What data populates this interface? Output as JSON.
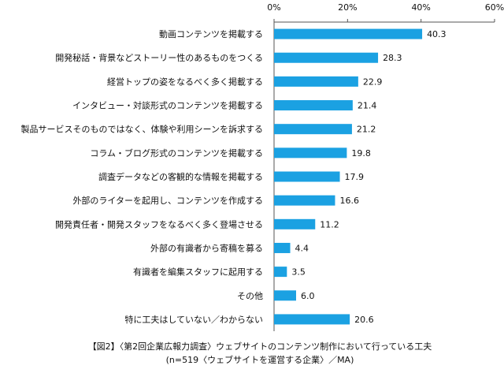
{
  "chart_data": {
    "type": "hbar",
    "title": "【図2】〈第2回企業広報力調査〉ウェブサイトのコンテンツ制作において行っている工夫",
    "subtitle": "(n=519〈ウェブサイトを運営する企業〉／MA)",
    "categories": [
      "動画コンテンツを掲載する",
      "開発秘話・背景などストーリー性のあるものをつくる",
      "経営トップの姿をなるべく多く掲載する",
      "インタビュー・対談形式のコンテンツを掲載する",
      "製品サービスそのものではなく、体験や利用シーンを訴求する",
      "コラム・ブログ形式のコンテンツを掲載する",
      "調査データなどの客観的な情報を掲載する",
      "外部のライターを起用し、コンテンツを作成する",
      "開発責任者・開発スタッフをなるべく多く登場させる",
      "外部の有識者から寄稿を募る",
      "有識者を編集スタッフに起用する",
      "その他",
      "特に工夫はしていない／わからない"
    ],
    "values": [
      40.3,
      28.3,
      22.9,
      21.4,
      21.2,
      19.8,
      17.9,
      16.6,
      11.2,
      4.4,
      3.5,
      6.0,
      20.6
    ],
    "value_labels": [
      "40.3",
      "28.3",
      "22.9",
      "21.4",
      "21.2",
      "19.8",
      "17.9",
      "16.6",
      "11.2",
      "4.4",
      "3.5",
      "6.0",
      "20.6"
    ],
    "color": "#1ba1e2",
    "xlim": [
      0,
      60
    ],
    "xticks": [
      {
        "value": 0,
        "label": "0%"
      },
      {
        "value": 20,
        "label": "20%"
      },
      {
        "value": 40,
        "label": "40%"
      },
      {
        "value": 60,
        "label": "60%"
      }
    ]
  }
}
